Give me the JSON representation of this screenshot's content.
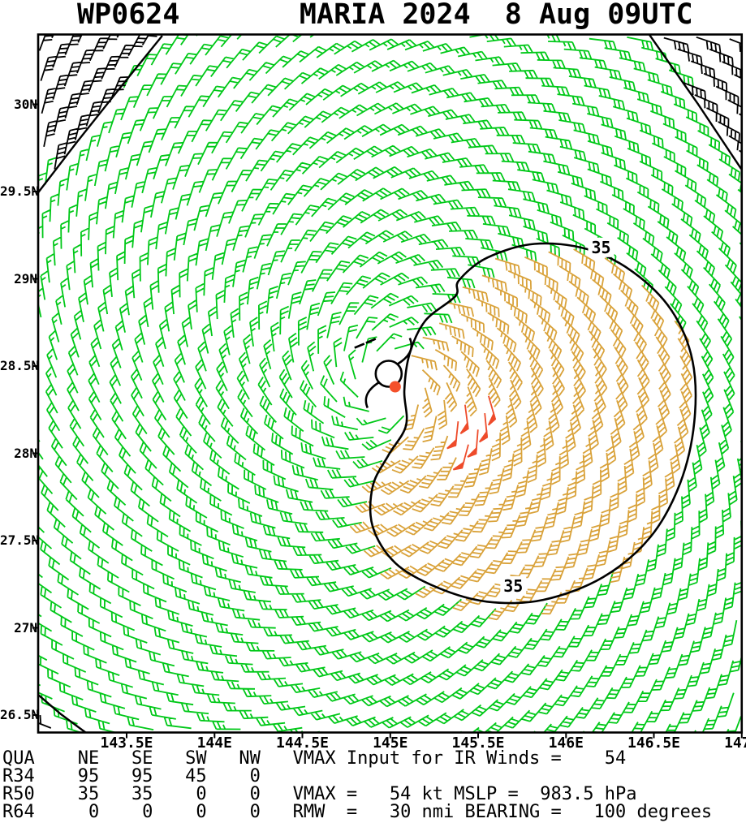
{
  "title": "WP0624       MARIA 2024  8 Aug 09UTC",
  "header": {
    "storm_id": "WP0624",
    "storm_name": "MARIA",
    "year": "2024",
    "valid_time": "8 Aug 09UTC"
  },
  "chart_data": {
    "type": "scatter",
    "subtype": "tropical-cyclone-wind-barb-analysis",
    "title": "WP0624 MARIA 2024 8 Aug 09UTC",
    "xlabel": "Longitude (deg E)",
    "ylabel": "Latitude (deg N)",
    "xlim": [
      143.0,
      147.0
    ],
    "ylim": [
      26.4,
      30.4
    ],
    "grid": false,
    "legend": false,
    "x_ticks": [
      {
        "value": 143.5,
        "label": "143.5E"
      },
      {
        "value": 144.0,
        "label": "144E"
      },
      {
        "value": 144.5,
        "label": "144.5E"
      },
      {
        "value": 145.0,
        "label": "145E"
      },
      {
        "value": 145.5,
        "label": "145.5E"
      },
      {
        "value": 146.0,
        "label": "146E"
      },
      {
        "value": 146.5,
        "label": "146.5E"
      },
      {
        "value": 147.0,
        "label": "147E"
      }
    ],
    "y_ticks": [
      {
        "value": 30.0,
        "label": "30N"
      },
      {
        "value": 29.5,
        "label": "29.5N"
      },
      {
        "value": 29.0,
        "label": "29N"
      },
      {
        "value": 28.5,
        "label": "28.5N"
      },
      {
        "value": 28.0,
        "label": "28N"
      },
      {
        "value": 27.5,
        "label": "27.5N"
      },
      {
        "value": 27.0,
        "label": "27N"
      },
      {
        "value": 26.5,
        "label": "26.5N"
      }
    ],
    "center": {
      "lon": 145.0,
      "lat": 28.4
    },
    "vmax_kt": 54,
    "vmax_input_ir_kt": 54,
    "mslp_hpa": 983.5,
    "rmw_nmi": 30,
    "bearing_deg": 100,
    "wind_radii_nmi": {
      "quadrants": [
        "NE",
        "SE",
        "SW",
        "NW"
      ],
      "R34": [
        95,
        95,
        45,
        0
      ],
      "R50": [
        35,
        35,
        0,
        0
      ],
      "R64": [
        0,
        0,
        0,
        0
      ]
    },
    "isotach_contour": {
      "value_kt": 35,
      "label": "35",
      "points_lonlat": [
        [
          145.37,
          28.9
        ],
        [
          145.2,
          28.76
        ],
        [
          145.11,
          28.57
        ],
        [
          145.08,
          28.36
        ],
        [
          145.09,
          28.16
        ],
        [
          144.99,
          27.99
        ],
        [
          144.9,
          27.81
        ],
        [
          144.9,
          27.58
        ],
        [
          145.03,
          27.37
        ],
        [
          145.27,
          27.23
        ],
        [
          145.55,
          27.15
        ],
        [
          145.87,
          27.16
        ],
        [
          146.21,
          27.29
        ],
        [
          146.48,
          27.52
        ],
        [
          146.65,
          27.83
        ],
        [
          146.73,
          28.18
        ],
        [
          146.72,
          28.53
        ],
        [
          146.6,
          28.82
        ],
        [
          146.38,
          29.04
        ],
        [
          146.12,
          29.17
        ],
        [
          145.82,
          29.2
        ],
        [
          145.55,
          29.12
        ],
        [
          145.39,
          28.99
        ]
      ],
      "label_positions_lonlat": [
        [
          146.2,
          29.18
        ],
        [
          145.7,
          27.24
        ]
      ]
    },
    "edge_lines_lonlat": [
      [
        [
          143.703,
          30.393
        ],
        [
          143.463,
          30.095
        ],
        [
          143.218,
          29.784
        ],
        [
          142.997,
          29.495
        ]
      ],
      [
        [
          146.475,
          30.398
        ],
        [
          146.751,
          30.002
        ],
        [
          146.997,
          29.63
        ]
      ],
      [
        [
          142.997,
          26.616
        ],
        [
          143.126,
          26.505
        ],
        [
          143.269,
          26.398
        ]
      ]
    ],
    "barb_colors": {
      "below_34kt": "#00c818",
      "34_to_49kt": "#d9a23a",
      "50kt_plus": "#ee4b2a",
      "edge_region": "#000000"
    },
    "center_symbol_color": "#f4502a"
  },
  "footer": {
    "lines": [
      "QUA    NE   SE   SW   NW   VMAX Input for IR Winds =    54",
      "R34    95   95   45    0",
      "R50    35   35    0    0   VMAX =   54 kt MSLP =  983.5 hPa",
      "R64     0    0    0    0   RMW  =   30 nmi BEARING =   100 degrees"
    ]
  }
}
